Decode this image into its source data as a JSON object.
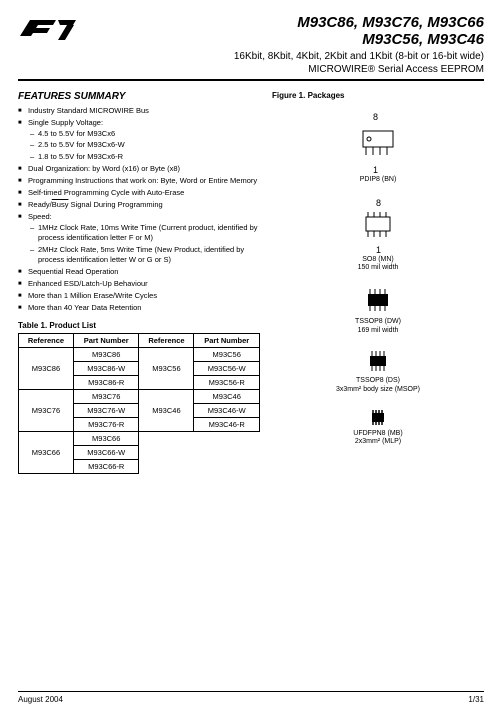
{
  "header": {
    "title_line1": "M93C86, M93C76, M93C66",
    "title_line2": "M93C56, M93C46",
    "subtitle_line1": "16Kbit, 8Kbit, 4Kbit, 2Kbit and 1Kbit (8-bit or 16-bit wide)",
    "subtitle_line2": "MICROWIRE® Serial Access EEPROM"
  },
  "features": {
    "heading": "FEATURES SUMMARY",
    "items": [
      {
        "text": "Industry Standard MICROWIRE Bus"
      },
      {
        "text": "Single Supply Voltage:",
        "sub": [
          "4.5 to 5.5V for M93Cx6",
          "2.5 to 5.5V for M93Cx6-W",
          "1.8 to 5.5V for M93Cx6-R"
        ]
      },
      {
        "text": "Dual Organization: by Word (x16) or Byte (x8)"
      },
      {
        "text": "Programming Instructions that work on: Byte, Word or Entire Memory"
      },
      {
        "text": "Self-timed Programming Cycle with Auto-Erase"
      },
      {
        "html": "Ready/<span class=\"overline\">Busy</span> Signal During Programming"
      },
      {
        "text": "Speed:",
        "sub": [
          "1MHz Clock Rate, 10ms Write Time (Current product, identified by process identification letter F or M)",
          "2MHz Clock Rate, 5ms Write Time (New Product, identified by process identification letter W or G or S)"
        ]
      },
      {
        "text": "Sequential Read Operation"
      },
      {
        "text": "Enhanced ESD/Latch-Up Behaviour"
      },
      {
        "text": "More than 1 Million Erase/Write Cycles"
      },
      {
        "text": "More than 40 Year Data Retention"
      }
    ]
  },
  "table": {
    "title": "Table 1. Product List",
    "headers": [
      "Reference",
      "Part Number",
      "Reference",
      "Part Number"
    ],
    "rows": [
      {
        "ref1": "M93C86",
        "ref1_span": 3,
        "pn1": "M93C86",
        "ref2": "M93C56",
        "ref2_span": 3,
        "pn2": "M93C56"
      },
      {
        "pn1": "M93C86-W",
        "pn2": "M93C56-W"
      },
      {
        "pn1": "M93C86-R",
        "pn2": "M93C56-R"
      },
      {
        "ref1": "M93C76",
        "ref1_span": 3,
        "pn1": "M93C76",
        "ref2": "M93C46",
        "ref2_span": 3,
        "pn2": "M93C46"
      },
      {
        "pn1": "M93C76-W",
        "pn2": "M93C46-W"
      },
      {
        "pn1": "M93C76-R",
        "pn2": "M93C46-R"
      },
      {
        "ref1": "M93C66",
        "ref1_span": 3,
        "pn1": "M93C66"
      },
      {
        "pn1": "M93C66-W"
      },
      {
        "pn1": "M93C66-R"
      }
    ]
  },
  "figure": {
    "title": "Figure 1. Packages",
    "packages": [
      {
        "pin_top": "8",
        "pin_bot": "1",
        "name": "PDIP8 (BN)",
        "note": ""
      },
      {
        "pin_top": "8",
        "pin_bot": "1",
        "name": "SO8 (MN)",
        "note": "150 mil width"
      },
      {
        "name": "TSSOP8 (DW)",
        "note": "169 mil width"
      },
      {
        "name": "TSSOP8 (DS)",
        "note": "3x3mm² body size (MSOP)"
      },
      {
        "name": "UFDFPN8 (MB)",
        "note": "2x3mm² (MLP)"
      }
    ]
  },
  "footer": {
    "date": "August 2004",
    "page": "1/31"
  }
}
